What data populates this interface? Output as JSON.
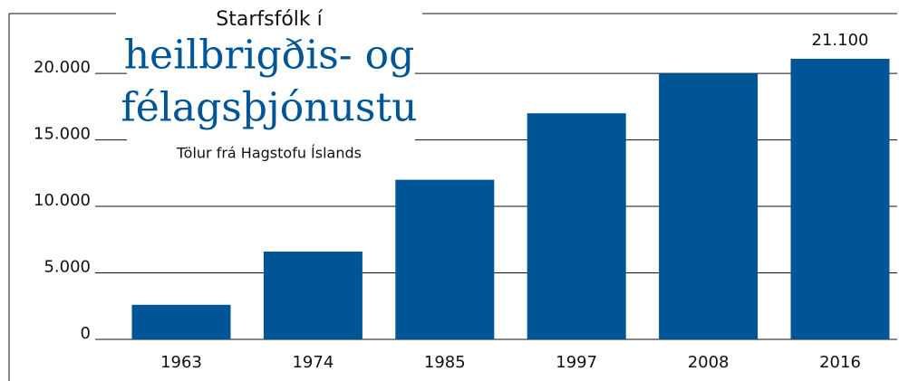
{
  "chart_data": {
    "type": "bar",
    "title": [
      "Starfsfólk í",
      "heilbrigðis- og",
      "félagsþjónustu"
    ],
    "subtitle": "Tölur frá Hagstofu Íslands",
    "categories": [
      "1963",
      "1974",
      "1985",
      "1997",
      "2008",
      "2016"
    ],
    "values": [
      2600,
      6600,
      12000,
      17000,
      20000,
      21100
    ],
    "value_labels": [
      null,
      null,
      null,
      null,
      null,
      "21.100"
    ],
    "color": "#005596",
    "ylim": [
      0,
      24500
    ],
    "yticks": [
      0,
      {
        "value": 5000,
        "label": "5.000"
      },
      {
        "value": 10000,
        "label": "10.000"
      },
      {
        "value": 15000,
        "label": "15.000"
      },
      {
        "value": 20000,
        "label": "20.000"
      }
    ],
    "grid": true
  }
}
